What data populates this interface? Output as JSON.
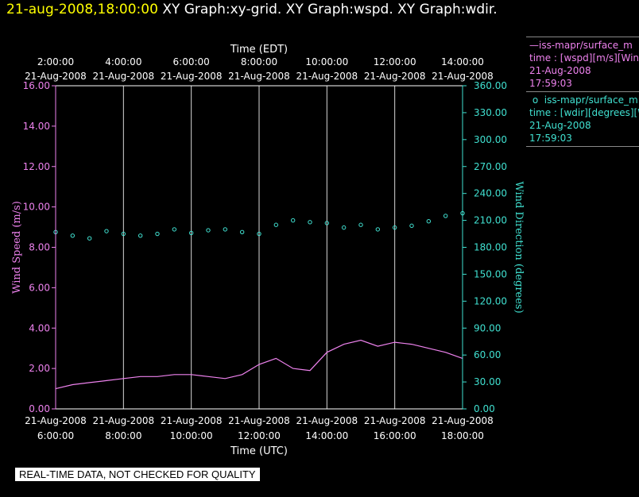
{
  "header": {
    "datetime": "21-aug-2008,18:00:00",
    "graphs": "XY Graph:xy-grid.  XY Graph:wspd.  XY Graph:wdir."
  },
  "chart_data": {
    "type": "line",
    "top_axis": {
      "title": "Time (EDT)",
      "ticks": [
        {
          "time": "2:00:00",
          "date": "21-Aug-2008"
        },
        {
          "time": "4:00:00",
          "date": "21-Aug-2008"
        },
        {
          "time": "6:00:00",
          "date": "21-Aug-2008"
        },
        {
          "time": "8:00:00",
          "date": "21-Aug-2008"
        },
        {
          "time": "10:00:00",
          "date": "21-Aug-2008"
        },
        {
          "time": "12:00:00",
          "date": "21-Aug-2008"
        },
        {
          "time": "14:00:00",
          "date": "21-Aug-2008"
        }
      ]
    },
    "bottom_axis": {
      "title": "Time (UTC)",
      "ticks": [
        {
          "time": "6:00:00",
          "date": "21-Aug-2008"
        },
        {
          "time": "8:00:00",
          "date": "21-Aug-2008"
        },
        {
          "time": "10:00:00",
          "date": "21-Aug-2008"
        },
        {
          "time": "12:00:00",
          "date": "21-Aug-2008"
        },
        {
          "time": "14:00:00",
          "date": "21-Aug-2008"
        },
        {
          "time": "16:00:00",
          "date": "21-Aug-2008"
        },
        {
          "time": "18:00:00",
          "date": "21-Aug-2008"
        }
      ],
      "xlim_utc_hours": [
        6,
        18
      ]
    },
    "left_axis": {
      "label": "Wind Speed (m/s)",
      "ylim": [
        0,
        16
      ],
      "ticks": [
        "0.00",
        "2.00",
        "4.00",
        "6.00",
        "8.00",
        "10.00",
        "12.00",
        "14.00",
        "16.00"
      ]
    },
    "right_axis": {
      "label": "Wind Direction (degrees)",
      "ylim": [
        0,
        360
      ],
      "ticks": [
        "0.00",
        "30.00",
        "60.00",
        "90.00",
        "120.00",
        "150.00",
        "180.00",
        "210.00",
        "240.00",
        "270.00",
        "300.00",
        "330.00",
        "360.00"
      ]
    },
    "grid": "vertical lines at every 2 hours",
    "series": [
      {
        "name": "iss-mapr/surface_m",
        "kind": "line",
        "axis": "left",
        "color": "#ee82ee",
        "x": [
          6.0,
          6.5,
          7.0,
          7.5,
          8.0,
          8.5,
          9.0,
          9.5,
          10.0,
          10.5,
          11.0,
          11.5,
          12.0,
          12.5,
          13.0,
          13.5,
          14.0,
          14.5,
          15.0,
          15.5,
          16.0,
          16.5,
          17.0,
          17.5,
          18.0
        ],
        "values": [
          1.0,
          1.2,
          1.3,
          1.4,
          1.5,
          1.6,
          1.6,
          1.7,
          1.7,
          1.6,
          1.5,
          1.7,
          2.2,
          2.5,
          2.0,
          1.9,
          2.8,
          3.2,
          3.4,
          3.1,
          3.3,
          3.2,
          3.0,
          2.8,
          2.5
        ]
      },
      {
        "name": "iss-mapr/surface_m",
        "kind": "scatter",
        "axis": "right",
        "color": "#40e0d0",
        "x": [
          6.0,
          6.5,
          7.0,
          7.5,
          8.0,
          8.5,
          9.0,
          9.5,
          10.0,
          10.5,
          11.0,
          11.5,
          12.0,
          12.5,
          13.0,
          13.5,
          14.0,
          14.5,
          15.0,
          15.5,
          16.0,
          16.5,
          17.0,
          17.5,
          18.0
        ],
        "values": [
          197,
          193,
          190,
          198,
          195,
          193,
          195,
          200,
          196,
          199,
          200,
          197,
          195,
          205,
          210,
          208,
          207,
          202,
          205,
          200,
          202,
          204,
          209,
          215,
          218
        ]
      }
    ],
    "legend": {
      "placement": "right",
      "entries": [
        {
          "line1": "iss-mapr/surface_m",
          "line2": "time : [wspd][m/s][Wind",
          "line3": "21-Aug-2008",
          "line4": "17:59:03"
        },
        {
          "line1": "iss-mapr/surface_m",
          "line2": "time : [wdir][degrees][W",
          "line3": "21-Aug-2008",
          "line4": "17:59:03"
        }
      ]
    }
  },
  "colors": {
    "wspd": "#ee82ee",
    "wdir": "#40e0d0",
    "frame": "#ffffff",
    "highlight": "#ffff00"
  },
  "footer": {
    "notice": "REAL-TIME DATA, NOT CHECKED FOR QUALITY"
  }
}
